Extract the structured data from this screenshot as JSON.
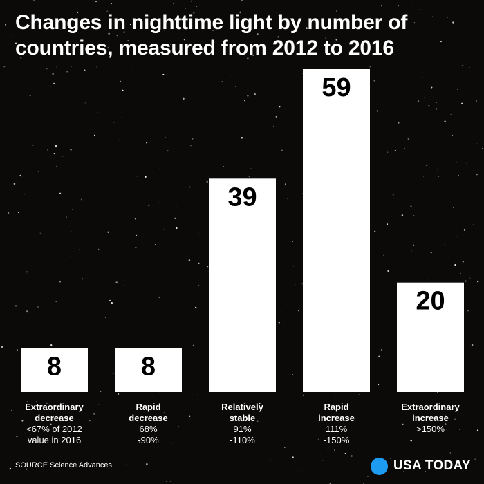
{
  "title": "Changes in nighttime light by number of countries, measured from 2012 to 2016",
  "source": "SOURCE Science Advances",
  "brand": {
    "name": "USA TODAY",
    "dot_color": "#1d9bf0"
  },
  "chart_data": {
    "type": "bar",
    "title": "Changes in nighttime light by number of countries, measured from 2012 to 2016",
    "xlabel": "",
    "ylabel": "",
    "ylim": [
      0,
      59
    ],
    "grid": false,
    "legend": "none",
    "bar_color": "#ffffff",
    "label_color": "#000000",
    "categories": [
      {
        "name": [
          "Extraordinary",
          "decrease"
        ],
        "range": [
          "<67% of 2012",
          "value in 2016"
        ]
      },
      {
        "name": [
          "Rapid",
          "decrease"
        ],
        "range": [
          "68%",
          "-90%"
        ]
      },
      {
        "name": [
          "Relatively",
          "stable"
        ],
        "range": [
          "91%",
          "-110%"
        ]
      },
      {
        "name": [
          "Rapid",
          "increase"
        ],
        "range": [
          "111%",
          "-150%"
        ]
      },
      {
        "name": [
          "Extraordinary",
          "increase"
        ],
        "range": [
          ">150%"
        ]
      }
    ],
    "values": [
      8,
      8,
      39,
      59,
      20
    ]
  }
}
